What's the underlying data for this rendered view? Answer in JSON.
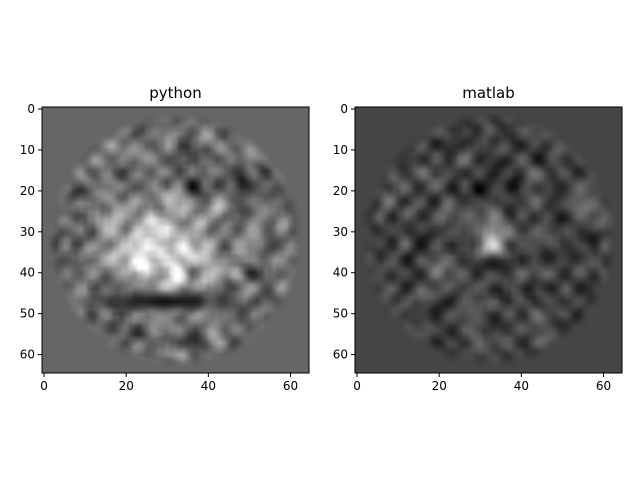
{
  "chart_data": [
    {
      "type": "heatmap",
      "title": "python",
      "xlabel": "",
      "ylabel": "",
      "colormap": "gray",
      "image_size": [
        65,
        65
      ],
      "xlim": [
        0,
        64
      ],
      "ylim": [
        64,
        0
      ],
      "xticks": [
        0,
        20,
        40,
        60
      ],
      "yticks": [
        0,
        10,
        20,
        30,
        40,
        50,
        60
      ],
      "background_level": 0.4,
      "ring_ripple": 0.22,
      "center_blob": {
        "x": 30,
        "y": 34,
        "peak": 0.97,
        "extent_x": 13,
        "extent_y": 12
      },
      "dark_rim": {
        "y": 47,
        "level": 0.08
      },
      "support_radius": 31
    },
    {
      "type": "heatmap",
      "title": "matlab",
      "xlabel": "",
      "ylabel": "",
      "colormap": "gray",
      "image_size": [
        65,
        65
      ],
      "xlim": [
        0,
        64
      ],
      "ylim": [
        64,
        0
      ],
      "xticks": [
        0,
        20,
        40,
        60
      ],
      "yticks": [
        0,
        10,
        20,
        30,
        40,
        50,
        60
      ],
      "background_level": 0.27,
      "ring_ripple": 0.14,
      "center_blob": {
        "x": 33,
        "y": 32,
        "peak": 0.95,
        "extent_x": 4,
        "extent_y": 6
      },
      "dark_rim": {
        "y": 38,
        "level": 0.1
      },
      "support_radius": 31
    }
  ]
}
